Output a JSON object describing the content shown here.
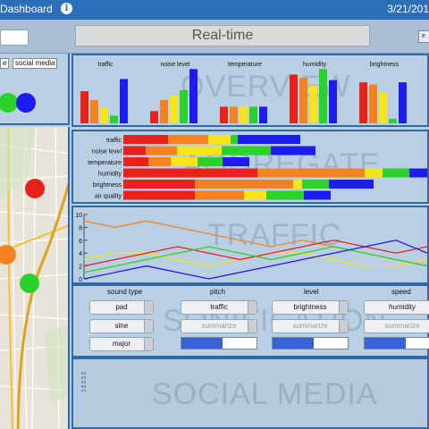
{
  "header": {
    "title": "Dashboard",
    "date": "3/21/201"
  },
  "toolbar": {
    "mode_label": "Real-time",
    "right_button_label": "e"
  },
  "left_panel": {
    "tags": [
      "e",
      "social media"
    ]
  },
  "overview": {
    "watermark": "OVERVIEW",
    "groups": [
      "traffic",
      "noise level",
      "temperature",
      "humidity",
      "brightness"
    ],
    "colors": [
      "#e8211d",
      "#f58220",
      "#f7e419",
      "#2bd22b",
      "#1c1cf0"
    ],
    "values": [
      [
        0.58,
        0.42,
        0.28,
        0.14,
        0.8
      ],
      [
        0.22,
        0.42,
        0.5,
        0.6,
        0.98
      ],
      [
        0.3,
        0.3,
        0.3,
        0.3,
        0.3
      ],
      [
        0.88,
        0.82,
        0.68,
        0.98,
        0.78
      ],
      [
        0.74,
        0.7,
        0.56,
        0.08,
        0.74
      ]
    ]
  },
  "aggregate": {
    "watermark": "AGGREGATE",
    "rows": [
      {
        "label": "traffic",
        "segments": [
          50,
          45,
          25,
          8,
          70
        ]
      },
      {
        "label": "noise level",
        "segments": [
          25,
          35,
          50,
          55,
          50
        ]
      },
      {
        "label": "temperature",
        "segments": [
          28,
          25,
          30,
          28,
          30
        ]
      },
      {
        "label": "humidity",
        "segments": [
          150,
          120,
          20,
          30,
          150
        ]
      },
      {
        "label": "brightness",
        "segments": [
          80,
          110,
          10,
          30,
          50
        ]
      },
      {
        "label": "air quality",
        "segments": [
          80,
          55,
          25,
          42,
          30
        ]
      }
    ]
  },
  "traffic": {
    "watermark": "TRAFFIC",
    "y_ticks": [
      "10",
      "8",
      "6",
      "4",
      "2",
      "0"
    ],
    "ylim": [
      0,
      10
    ],
    "series": [
      {
        "color": "#f58220",
        "values": [
          9,
          8,
          9,
          8,
          7,
          6,
          5,
          6,
          5,
          4,
          3,
          2
        ]
      },
      {
        "color": "#f7e419",
        "values": [
          3,
          4,
          4,
          3,
          2,
          3,
          4,
          4,
          3,
          2,
          2,
          3
        ]
      },
      {
        "color": "#e8211d",
        "values": [
          2,
          3,
          4,
          5,
          4,
          3,
          4,
          5,
          6,
          5,
          4,
          5
        ]
      },
      {
        "color": "#2bd22b",
        "values": [
          1,
          2,
          3,
          4,
          5,
          4,
          3,
          4,
          5,
          4,
          3,
          2
        ]
      },
      {
        "color": "#1c1cf0",
        "values": [
          0,
          1,
          2,
          1,
          0,
          1,
          2,
          3,
          4,
          5,
          6,
          4
        ]
      }
    ]
  },
  "sonify": {
    "watermark": "SONIFICATION",
    "sound_type": {
      "header": "sound type",
      "options": [
        "pad",
        "sine",
        "major"
      ]
    },
    "pitch": {
      "header": "pitch",
      "value": "traffic",
      "button": "summarize",
      "level": 0.55
    },
    "level": {
      "header": "level",
      "value": "brightness",
      "button": "summarize",
      "level": 0.55
    },
    "speed": {
      "header": "speed",
      "value": "humidity",
      "button": "summarize",
      "level": 0.55
    }
  },
  "social": {
    "watermark": "SOCIAL MEDIA"
  },
  "map": {
    "markers": [
      {
        "color": "#e8211d"
      },
      {
        "color": "#f58220"
      },
      {
        "color": "#2bd22b"
      }
    ]
  }
}
